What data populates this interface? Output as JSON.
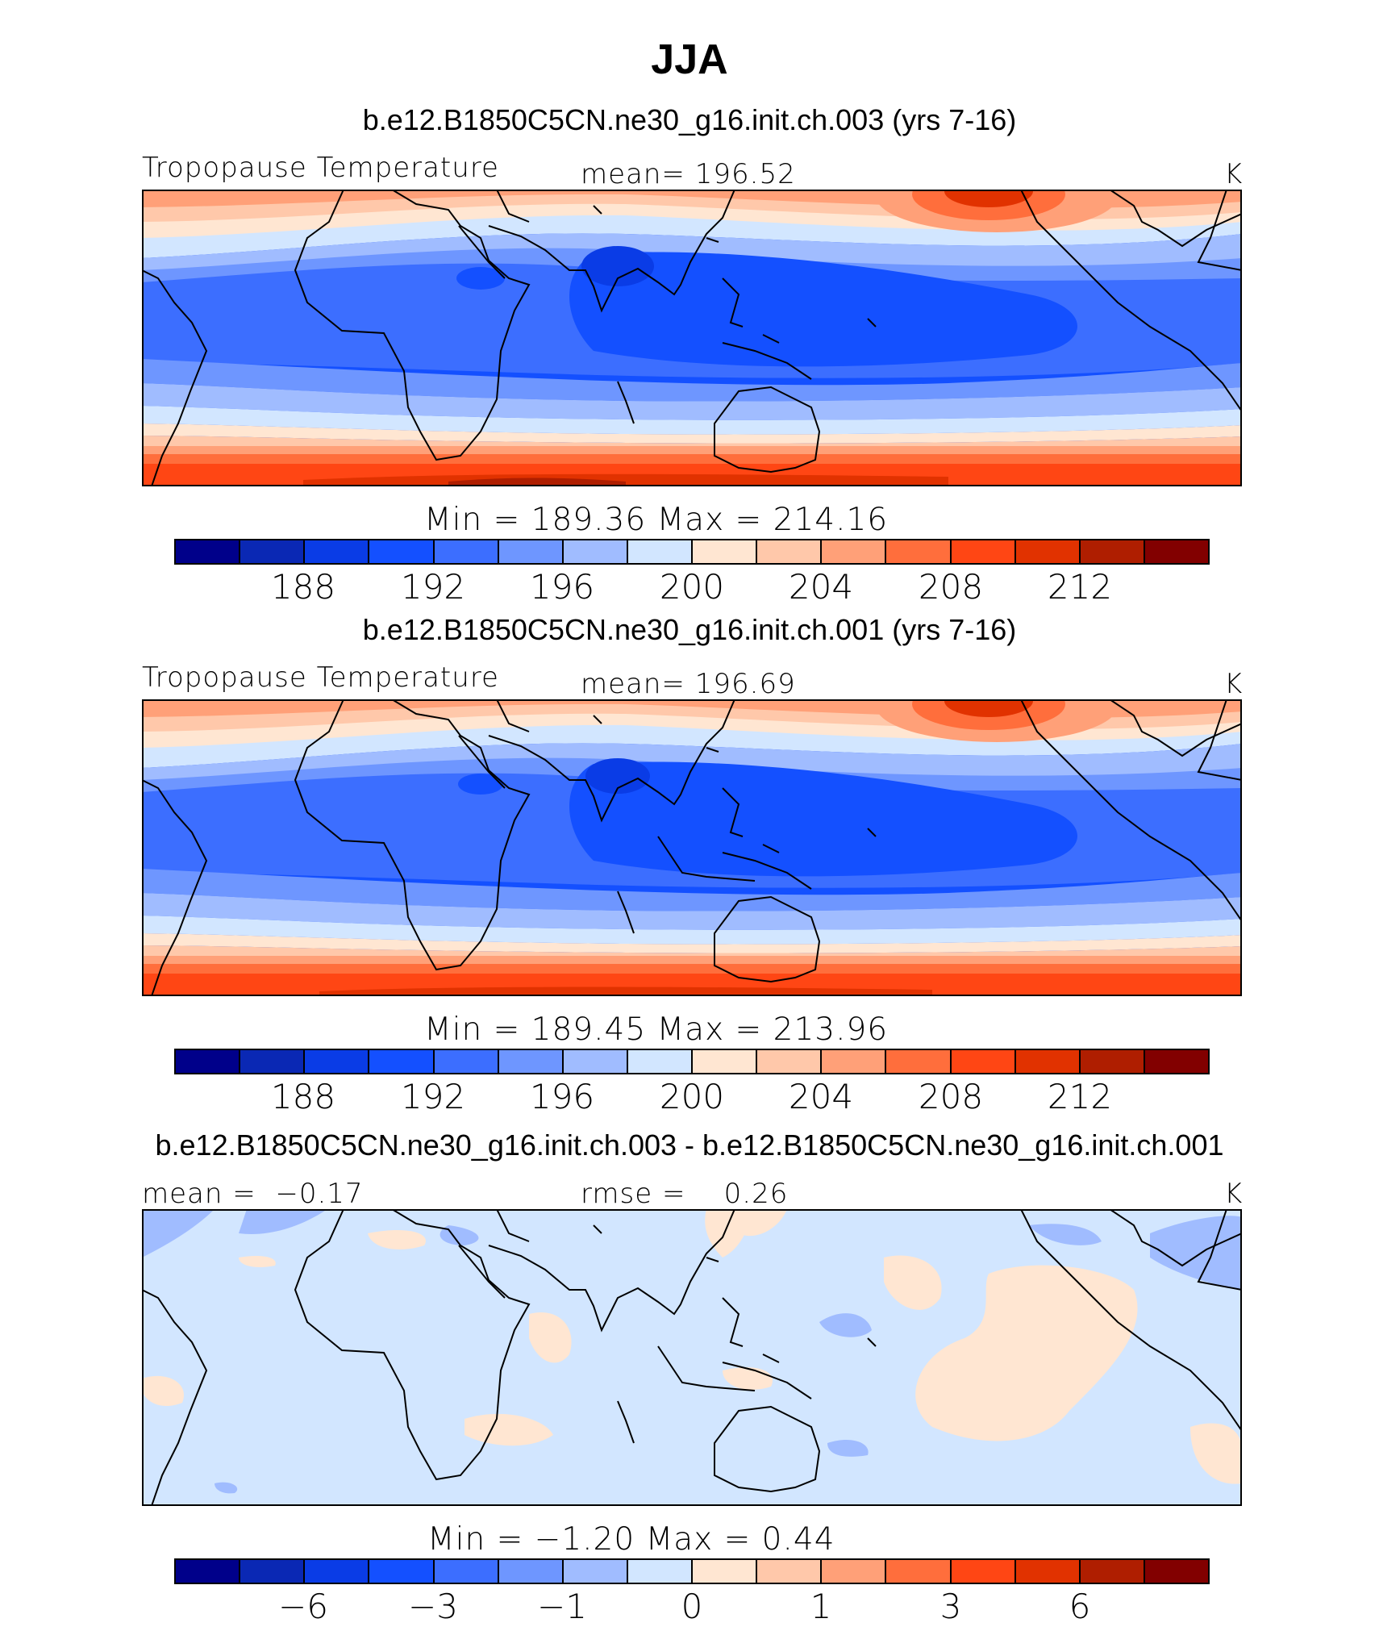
{
  "title": "JJA",
  "colors": [
    "#00008a",
    "#0a28b4",
    "#0a3ce6",
    "#1450ff",
    "#3c6eff",
    "#6e96ff",
    "#a0bcff",
    "#d2e6ff",
    "#ffe6d2",
    "#ffc8aa",
    "#ffa078",
    "#ff6e3c",
    "#ff4614",
    "#e13200",
    "#af1e00",
    "#820000"
  ],
  "chart_data": [
    {
      "type": "heatmap",
      "case_title": "b.e12.B1850C5CN.ne30_g16.init.ch.003 (yrs 7-16)",
      "variable": "Tropopause Temperature",
      "units": "K",
      "mean_label": "mean=",
      "mean_value": "196.52",
      "mean": 196.52,
      "stats_text": "Min  =  189.36  Max  =  214.16",
      "min": 189.36,
      "max": 214.16,
      "colorbar_ticks": [
        "188",
        "192",
        "196",
        "200",
        "204",
        "208",
        "212"
      ],
      "colorbar_levels": [
        186,
        188,
        190,
        192,
        194,
        196,
        198,
        200,
        202,
        204,
        206,
        208,
        210,
        212,
        214
      ]
    },
    {
      "type": "heatmap",
      "case_title": "b.e12.B1850C5CN.ne30_g16.init.ch.001 (yrs 7-16)",
      "variable": "Tropopause Temperature",
      "units": "K",
      "mean_label": "mean=",
      "mean_value": "196.69",
      "mean": 196.69,
      "stats_text": "Min  =  189.45  Max  =  213.96",
      "min": 189.45,
      "max": 213.96,
      "colorbar_ticks": [
        "188",
        "192",
        "196",
        "200",
        "204",
        "208",
        "212"
      ],
      "colorbar_levels": [
        186,
        188,
        190,
        192,
        194,
        196,
        198,
        200,
        202,
        204,
        206,
        208,
        210,
        212,
        214
      ]
    },
    {
      "type": "heatmap",
      "case_title": "b.e12.B1850C5CN.ne30_g16.init.ch.003 - b.e12.B1850C5CN.ne30_g16.init.ch.001",
      "units": "K",
      "mean_label": "mean  =",
      "mean_value": "−0.17",
      "mean": -0.17,
      "rmse_label": "rmse  =",
      "rmse_value": "0.26",
      "rmse": 0.26,
      "stats_text": "Min  =    −1.20  Max  =      0.44",
      "min": -1.2,
      "max": 0.44,
      "colorbar_ticks": [
        "−6",
        "−3",
        "−1",
        "0",
        "1",
        "3",
        "6"
      ]
    }
  ]
}
